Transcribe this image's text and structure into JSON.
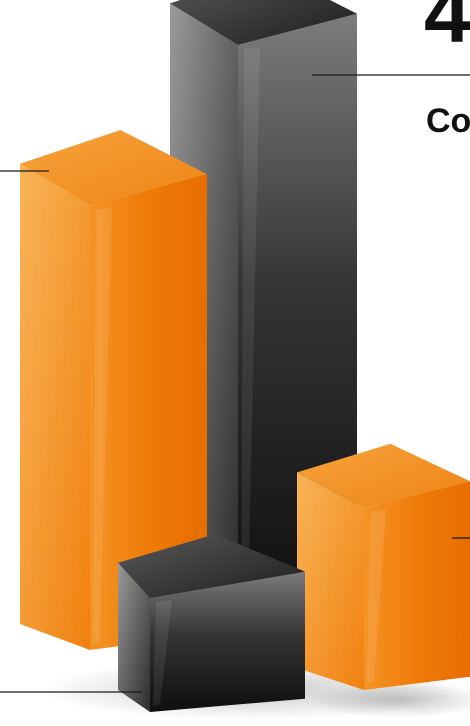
{
  "chart_data": {
    "type": "bar",
    "categories": [
      "",
      "",
      "",
      ""
    ],
    "series": [
      {
        "values": [
          78,
          100,
          32,
          20
        ]
      }
    ],
    "ylim": [
      0,
      100
    ],
    "grid": false,
    "style": "3d-columns",
    "bar_colors": [
      "#f07d0a",
      "#2b2b2b",
      "#f07d0a",
      "#2b2b2b"
    ]
  },
  "annotations": {
    "number_label": "4",
    "caption_label": "Co"
  },
  "colors": {
    "orange_front": "#f07d0a",
    "orange_light": "#f7a845",
    "orange_top": "#f39a2e",
    "dark_front": "#1a1a1a",
    "dark_light": "#8a8a8a",
    "dark_top": "#3a3a3a",
    "callout_line": "#1a1a1a",
    "text": "#111111"
  }
}
